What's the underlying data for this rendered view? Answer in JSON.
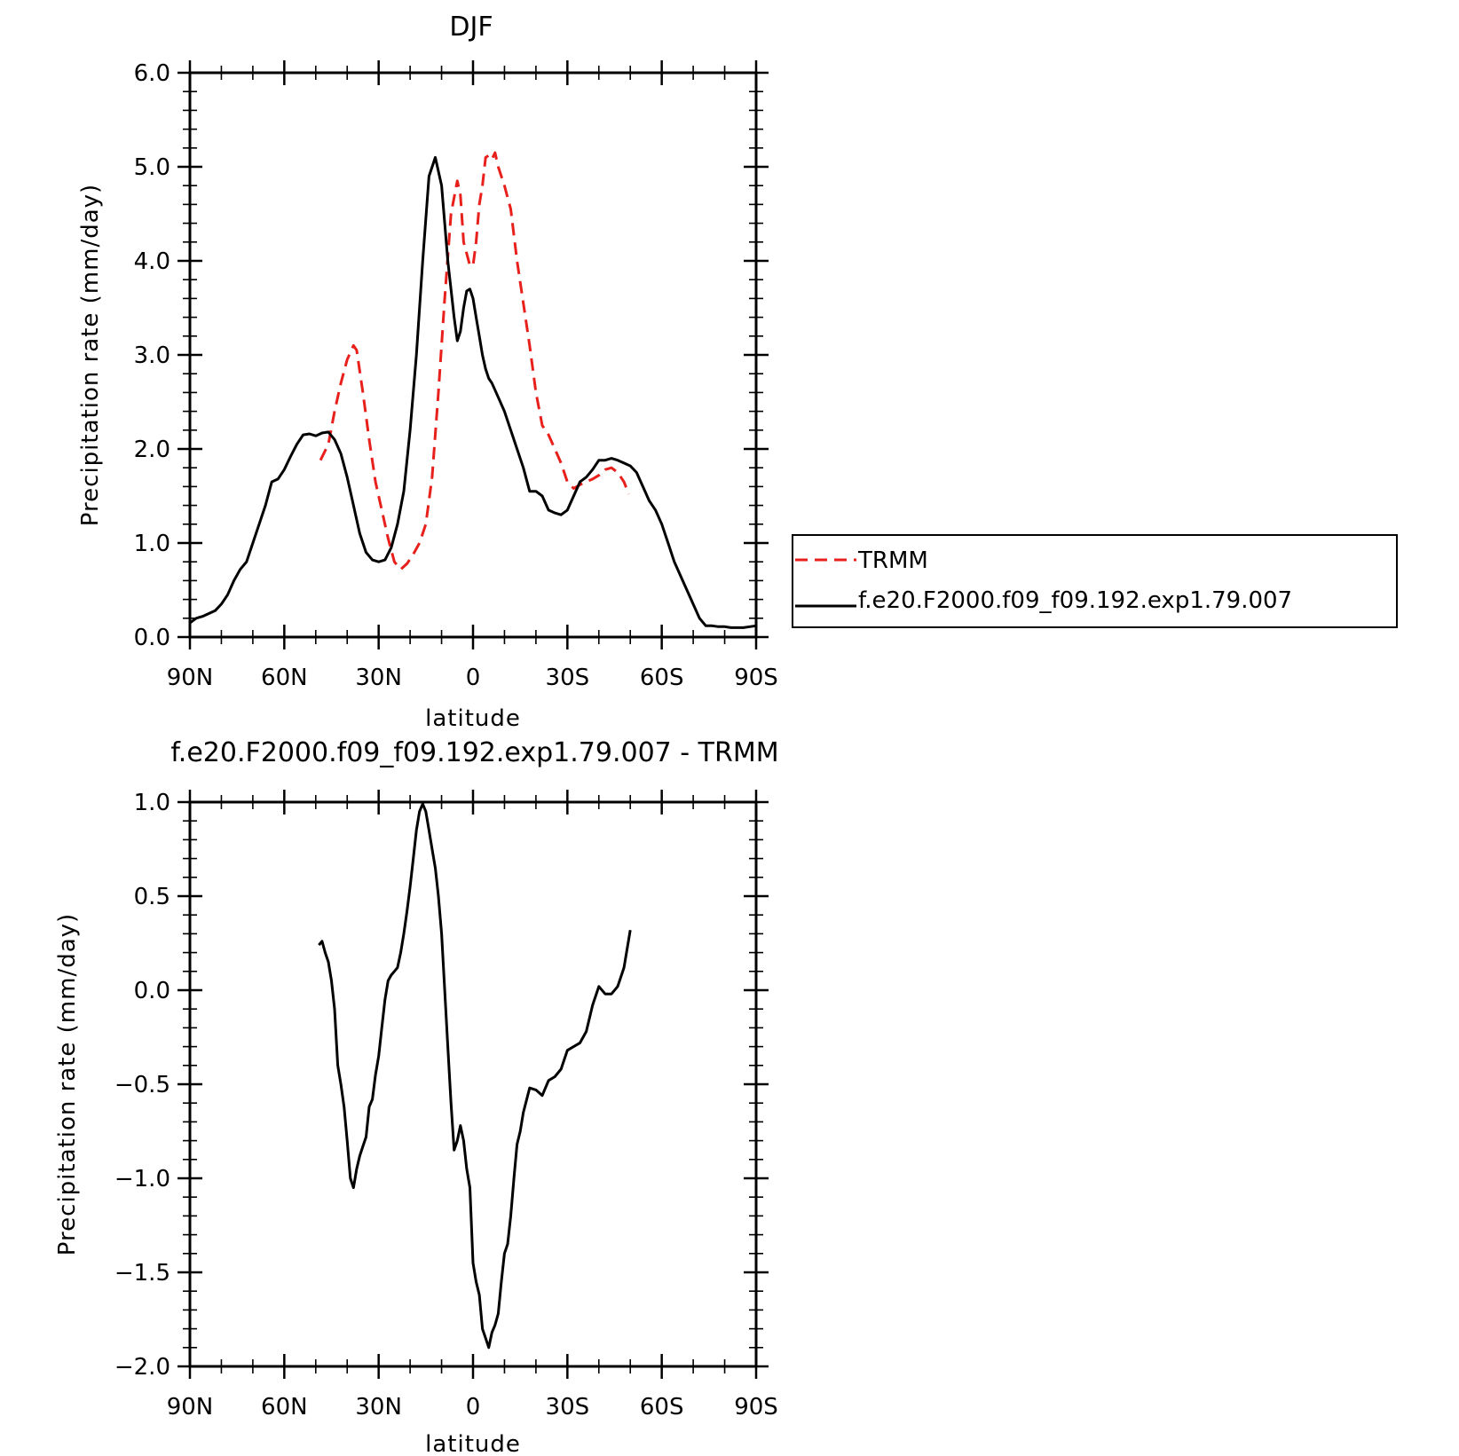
{
  "chart_data": [
    {
      "type": "line",
      "title": "DJF",
      "xlabel": "latitude",
      "ylabel": "Precipitation rate (mm/day)",
      "xlim": [
        90,
        -90
      ],
      "ylim": [
        0,
        6
      ],
      "x_ticks": [
        90,
        60,
        30,
        0,
        -30,
        -60,
        -90
      ],
      "x_tick_labels": [
        "90N",
        "60N",
        "30N",
        "0",
        "30S",
        "60S",
        "90S"
      ],
      "y_ticks": [
        0,
        1,
        2,
        3,
        4,
        5,
        6
      ],
      "y_tick_labels": [
        "0.0",
        "1.0",
        "2.0",
        "3.0",
        "4.0",
        "5.0",
        "6.0"
      ],
      "grid": false,
      "legend_position": "right",
      "series": [
        {
          "name": "TRMM",
          "color": "#e8201c",
          "dash": "dashed",
          "x": [
            48.5,
            46,
            44,
            42,
            40,
            38,
            37,
            35,
            33,
            31,
            29,
            27,
            25,
            23,
            21,
            19,
            17,
            15,
            13,
            11,
            9,
            7,
            5,
            4,
            3,
            1,
            0,
            -1,
            -2,
            -3,
            -4,
            -5,
            -6,
            -7,
            -8,
            -10,
            -12,
            -14,
            -16,
            -18,
            -20,
            -22,
            -24,
            -26,
            -28,
            -30,
            -32,
            -34,
            -36,
            -38,
            -40,
            -42,
            -44,
            -46,
            -48,
            -49.5
          ],
          "y": [
            1.88,
            2.05,
            2.4,
            2.7,
            2.95,
            3.1,
            3.05,
            2.6,
            2.1,
            1.65,
            1.35,
            1.05,
            0.8,
            0.72,
            0.78,
            0.88,
            1.0,
            1.2,
            1.7,
            2.6,
            3.6,
            4.5,
            4.85,
            4.7,
            4.2,
            3.95,
            3.95,
            4.2,
            4.6,
            4.8,
            5.1,
            5.12,
            5.08,
            5.15,
            5.0,
            4.8,
            4.55,
            4.0,
            3.55,
            3.1,
            2.6,
            2.25,
            2.15,
            2.0,
            1.85,
            1.65,
            1.58,
            1.62,
            1.65,
            1.68,
            1.72,
            1.78,
            1.8,
            1.75,
            1.65,
            1.52
          ]
        },
        {
          "name": "f.e20.F2000.f09_f09.192.exp1.79.007",
          "color": "#000000",
          "dash": "solid",
          "x": [
            90,
            88,
            86,
            84,
            82,
            80,
            78,
            76,
            74,
            72,
            70,
            68,
            66,
            64,
            62,
            60,
            58,
            56,
            54,
            52,
            50,
            48,
            46,
            44,
            42,
            40,
            38,
            36,
            34,
            32,
            30,
            28,
            26,
            24,
            22,
            20,
            18,
            16,
            14,
            12,
            10,
            8,
            6,
            5,
            4,
            3,
            2,
            1,
            0,
            -1,
            -2,
            -3,
            -4,
            -5,
            -6,
            -8,
            -10,
            -12,
            -14,
            -16,
            -18,
            -20,
            -22,
            -24,
            -26,
            -28,
            -30,
            -32,
            -34,
            -36,
            -38,
            -40,
            -42,
            -44,
            -46,
            -48,
            -50,
            -52,
            -54,
            -56,
            -58,
            -60,
            -62,
            -64,
            -66,
            -68,
            -70,
            -72,
            -74,
            -76,
            -78,
            -80,
            -82,
            -84,
            -86,
            -88,
            -90
          ],
          "y": [
            0.15,
            0.2,
            0.22,
            0.25,
            0.28,
            0.35,
            0.45,
            0.6,
            0.72,
            0.8,
            1.0,
            1.2,
            1.4,
            1.65,
            1.68,
            1.78,
            1.92,
            2.05,
            2.15,
            2.16,
            2.14,
            2.17,
            2.18,
            2.1,
            1.95,
            1.7,
            1.4,
            1.1,
            0.9,
            0.82,
            0.8,
            0.82,
            0.95,
            1.2,
            1.55,
            2.2,
            3.0,
            4.0,
            4.9,
            5.1,
            4.8,
            4.0,
            3.4,
            3.15,
            3.25,
            3.5,
            3.68,
            3.7,
            3.6,
            3.4,
            3.2,
            3.0,
            2.85,
            2.75,
            2.7,
            2.55,
            2.4,
            2.2,
            2.0,
            1.8,
            1.55,
            1.55,
            1.5,
            1.35,
            1.32,
            1.3,
            1.35,
            1.5,
            1.65,
            1.7,
            1.78,
            1.88,
            1.88,
            1.9,
            1.88,
            1.85,
            1.82,
            1.75,
            1.6,
            1.45,
            1.35,
            1.2,
            1.0,
            0.8,
            0.65,
            0.5,
            0.35,
            0.2,
            0.12,
            0.12,
            0.11,
            0.11,
            0.1,
            0.1,
            0.1,
            0.11,
            0.12
          ]
        }
      ]
    },
    {
      "type": "line",
      "title": "f.e20.F2000.f09_f09.192.exp1.79.007 - TRMM",
      "xlabel": "latitude",
      "ylabel": "Precipitation rate (mm/day)",
      "xlim": [
        90,
        -90
      ],
      "ylim": [
        -2,
        1
      ],
      "x_ticks": [
        90,
        60,
        30,
        0,
        -30,
        -60,
        -90
      ],
      "x_tick_labels": [
        "90N",
        "60N",
        "30N",
        "0",
        "30S",
        "60S",
        "90S"
      ],
      "y_ticks": [
        -2,
        -1.5,
        -1,
        -0.5,
        0,
        0.5,
        1
      ],
      "y_tick_labels": [
        "-2.0",
        "-1.5",
        "-1.0",
        "-0.5",
        "0.0",
        "0.5",
        "1.0"
      ],
      "grid": false,
      "series": [
        {
          "name": "",
          "color": "#000000",
          "dash": "solid",
          "x": [
            49,
            48,
            47,
            46,
            45,
            44,
            43,
            42,
            41,
            40,
            39,
            38,
            37,
            36,
            35,
            34,
            33,
            32,
            31,
            30,
            29,
            28,
            27,
            26,
            25,
            24,
            23,
            22,
            21,
            20,
            19,
            18,
            17,
            16,
            15,
            14,
            13,
            12,
            11,
            10,
            9,
            8,
            7,
            6,
            5,
            4,
            3,
            2,
            1,
            0,
            -1,
            -2,
            -3,
            -4,
            -5,
            -6,
            -7,
            -8,
            -9,
            -10,
            -11,
            -12,
            -13,
            -14,
            -15,
            -16,
            -18,
            -20,
            -22,
            -24,
            -26,
            -28,
            -30,
            -32,
            -34,
            -36,
            -38,
            -40,
            -42,
            -44,
            -46,
            -48,
            -50
          ],
          "y": [
            0.24,
            0.26,
            0.2,
            0.15,
            0.05,
            -0.1,
            -0.4,
            -0.5,
            -0.62,
            -0.8,
            -1.0,
            -1.05,
            -0.95,
            -0.88,
            -0.83,
            -0.78,
            -0.62,
            -0.58,
            -0.45,
            -0.35,
            -0.2,
            -0.05,
            0.05,
            0.08,
            0.1,
            0.12,
            0.2,
            0.3,
            0.42,
            0.55,
            0.7,
            0.85,
            0.95,
            0.99,
            0.95,
            0.85,
            0.75,
            0.65,
            0.5,
            0.3,
            0.0,
            -0.3,
            -0.6,
            -0.85,
            -0.8,
            -0.72,
            -0.8,
            -0.95,
            -1.05,
            -1.45,
            -1.55,
            -1.62,
            -1.8,
            -1.85,
            -1.9,
            -1.82,
            -1.78,
            -1.72,
            -1.55,
            -1.4,
            -1.35,
            -1.2,
            -1.0,
            -0.82,
            -0.75,
            -0.65,
            -0.52,
            -0.53,
            -0.56,
            -0.48,
            -0.46,
            -0.42,
            -0.32,
            -0.3,
            -0.28,
            -0.22,
            -0.08,
            0.02,
            -0.02,
            -0.02,
            0.02,
            0.12,
            0.32
          ]
        }
      ]
    }
  ]
}
